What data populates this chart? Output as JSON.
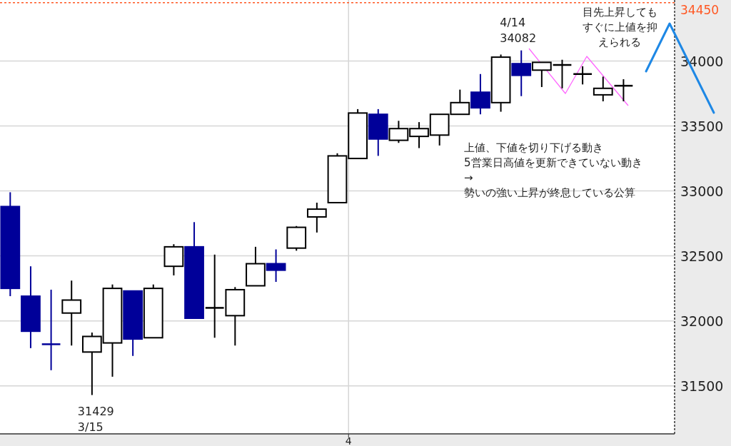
{
  "chart_data": {
    "type": "candlestick",
    "categories": [
      null,
      null,
      null,
      null,
      null,
      null,
      null,
      null,
      null,
      null,
      null,
      null,
      null,
      null,
      null,
      null,
      null,
      null,
      null,
      null,
      null,
      null,
      null,
      null,
      null,
      null,
      null,
      null,
      null,
      null,
      null,
      null,
      null
    ],
    "ohlc": [
      [
        32880,
        32990,
        32190,
        32250
      ],
      [
        32190,
        32420,
        31790,
        31920
      ],
      [
        31820,
        32240,
        31620,
        31820
      ],
      [
        32060,
        32310,
        31810,
        32160
      ],
      [
        31760,
        31910,
        31429,
        31880
      ],
      [
        31830,
        32280,
        31570,
        32250
      ],
      [
        32230,
        32230,
        31730,
        31860
      ],
      [
        31870,
        32280,
        31870,
        32250
      ],
      [
        32420,
        32590,
        32350,
        32570
      ],
      [
        32570,
        32760,
        32020,
        32020
      ],
      [
        32100,
        32510,
        31870,
        32100
      ],
      [
        32040,
        32260,
        31810,
        32240
      ],
      [
        32270,
        32570,
        32270,
        32440
      ],
      [
        32440,
        32550,
        32300,
        32390
      ],
      [
        32560,
        32730,
        32540,
        32720
      ],
      [
        32800,
        32910,
        32680,
        32860
      ],
      [
        32910,
        33290,
        32910,
        33270
      ],
      [
        33250,
        33630,
        33250,
        33600
      ],
      [
        33590,
        33630,
        33270,
        33400
      ],
      [
        33390,
        33540,
        33370,
        33480
      ],
      [
        33420,
        33530,
        33330,
        33480
      ],
      [
        33430,
        33590,
        33350,
        33590
      ],
      [
        33590,
        33780,
        33590,
        33680
      ],
      [
        33760,
        33900,
        33590,
        33640
      ],
      [
        33680,
        34050,
        33610,
        34030
      ],
      [
        33980,
        34082,
        33730,
        33890
      ],
      [
        33930,
        33990,
        33800,
        33990
      ],
      [
        33970,
        34010,
        33790,
        33970
      ],
      [
        33900,
        33960,
        33820,
        33900
      ],
      [
        33740,
        33880,
        33690,
        33790
      ],
      [
        33810,
        33860,
        33690,
        33810
      ],
      null,
      null
    ],
    "colors": [
      "#000099",
      "#000099",
      "#000099",
      "#000000",
      "#000000",
      "#000000",
      "#000099",
      "#000000",
      "#000000",
      "#000099",
      "#000000",
      "#000000",
      "#000000",
      "#000099",
      "#000000",
      "#000000",
      "#000000",
      "#000000",
      "#000099",
      "#000000",
      "#000000",
      "#000000",
      "#000000",
      "#000099",
      "#000000",
      "#000099",
      "#000000",
      "#000000",
      "#000000",
      "#000000",
      "#000000",
      null,
      null
    ],
    "ylim": [
      31130,
      34470
    ],
    "yticks": [
      31500,
      32000,
      32500,
      33000,
      33500,
      34000
    ],
    "grid": "y",
    "ref_lines": [
      {
        "axis": "y",
        "value": 34450,
        "label": "34450",
        "color": "#ff5722",
        "line_style": "dotted"
      }
    ],
    "annotations": [
      "4/14\n34082",
      "31429\n3/15",
      "4",
      "目先上昇してもすぐに上値を抑えられる",
      "上値、下値を切り下げる動き\n5営業日高値を更新できていない動き\n→\n勢いの強い上昇が終息している公算"
    ]
  }
}
